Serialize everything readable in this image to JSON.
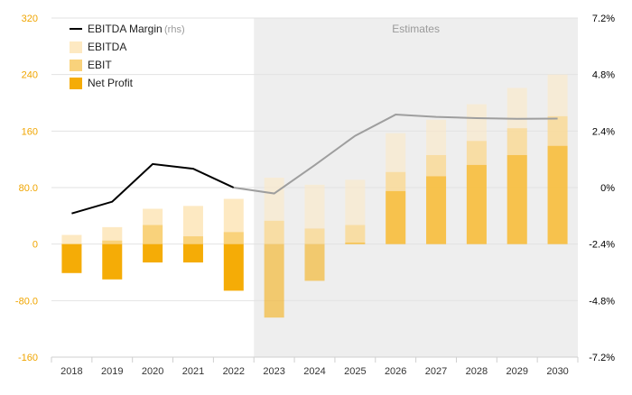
{
  "chart_data": {
    "type": "bar",
    "categories": [
      "2018",
      "2019",
      "2020",
      "2021",
      "2022",
      "2023",
      "2024",
      "2025",
      "2026",
      "2027",
      "2028",
      "2029",
      "2030"
    ],
    "estimates_from_index": 5,
    "estimates_label": "Estimates",
    "series": [
      {
        "name": "EBITDA",
        "kind": "bar-overlay",
        "color": "#fde9c2",
        "values": [
          13,
          24,
          50,
          54,
          64,
          94,
          84,
          91,
          157,
          176,
          198,
          221,
          240
        ]
      },
      {
        "name": "EBIT",
        "kind": "bar-overlay",
        "color": "#f9d27b",
        "values": [
          -3,
          5,
          27,
          11,
          17,
          33,
          22,
          27,
          102,
          126,
          146,
          164,
          181
        ]
      },
      {
        "name": "Net Profit",
        "kind": "bar-overlay",
        "color": "#f5ac06",
        "values": [
          -41,
          -50,
          -26,
          -26,
          -66,
          -104,
          -52,
          2,
          75,
          96,
          112,
          126,
          139
        ]
      },
      {
        "name": "EBITDA Margin",
        "name_suffix": "(rhs)",
        "kind": "line",
        "axis": "right",
        "color": "#000000",
        "estimate_color": "#9e9e9e",
        "values": [
          -1.1,
          -0.6,
          1.0,
          0.8,
          0.0,
          -0.25,
          0.95,
          2.2,
          3.1,
          3.0,
          2.95,
          2.92,
          2.93
        ]
      }
    ],
    "y_left": {
      "min": -160,
      "max": 320,
      "ticks": [
        "-160",
        "-80.0",
        "0",
        "80.0",
        "160",
        "240",
        "320"
      ],
      "tick_values": [
        -160,
        -80,
        0,
        80,
        160,
        240,
        320
      ],
      "color": "#f0a500"
    },
    "y_right": {
      "min": -7.2,
      "max": 7.2,
      "ticks": [
        "-7.2%",
        "-4.8%",
        "-2.4%",
        "0%",
        "2.4%",
        "4.8%",
        "7.2%"
      ],
      "tick_values": [
        -7.2,
        -4.8,
        -2.4,
        0,
        2.4,
        4.8,
        7.2
      ],
      "color": "#000000"
    },
    "grid": true,
    "legend_position": "top-left",
    "title": "",
    "xlabel": "",
    "ylabel": ""
  }
}
